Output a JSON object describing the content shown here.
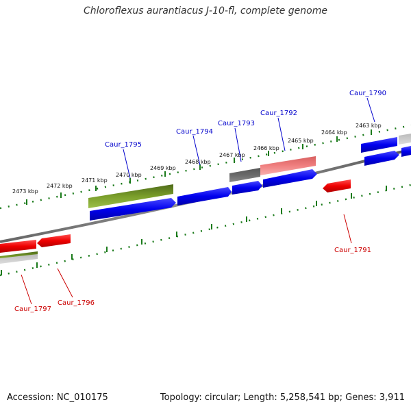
{
  "title": "Chloroflexus aurantiacus J-10-fl, complete genome",
  "footer": {
    "accession": "Accession: NC_010175",
    "info": "Topology: circular; Length: 5,258,541 bp; Genes: 3,911"
  },
  "ticks": [
    "2473 kbp",
    "2472 kbp",
    "2471 kbp",
    "2470 kbp",
    "2469 kbp",
    "2468 kbp",
    "2467 kbp",
    "2466 kbp",
    "2465 kbp",
    "2464 kbp",
    "2463 kbp"
  ],
  "genes_forward": [
    "Caur_1795",
    "Caur_1794",
    "Caur_1793",
    "Caur_1792",
    "Caur_1790"
  ],
  "genes_reverse": [
    "Caur_1797",
    "Caur_1796",
    "Caur_1791"
  ],
  "colors": {
    "forward_label": "#0000cc",
    "reverse_label": "#cc0000",
    "blue": "#1010ee",
    "red": "#ee1010",
    "olive": "#6b8e23",
    "gray": "#666666",
    "pink": "#f08080",
    "ruler": "#1a7a1a"
  }
}
